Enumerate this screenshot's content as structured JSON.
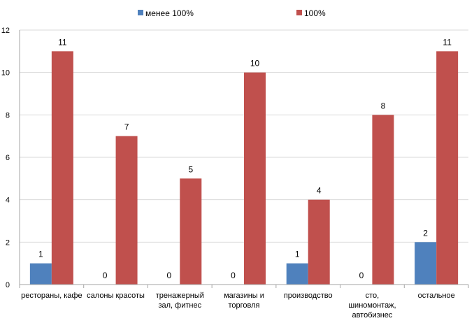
{
  "chart_data": {
    "type": "bar",
    "categories": [
      [
        "рестораны, кафе"
      ],
      [
        "салоны красоты"
      ],
      [
        "тренажерный",
        "зал, фитнес"
      ],
      [
        "магазины и",
        "торговля"
      ],
      [
        "производство"
      ],
      [
        "сто,",
        "шиномонтаж,",
        "автобизнес"
      ],
      [
        "остальное"
      ]
    ],
    "series": [
      {
        "name": "менее 100%",
        "values": [
          1,
          0,
          0,
          0,
          1,
          0,
          2
        ]
      },
      {
        "name": "100%",
        "values": [
          11,
          7,
          5,
          10,
          4,
          8,
          11
        ]
      }
    ],
    "ylim": [
      0,
      12
    ],
    "yticks": [
      0,
      2,
      4,
      6,
      8,
      10,
      12
    ],
    "grid": true,
    "legend_position": "top"
  },
  "colors": {
    "series": [
      "#4f81bd",
      "#c0504d"
    ],
    "grid": "#d9d9d9",
    "axis": "#a6a6a6"
  }
}
